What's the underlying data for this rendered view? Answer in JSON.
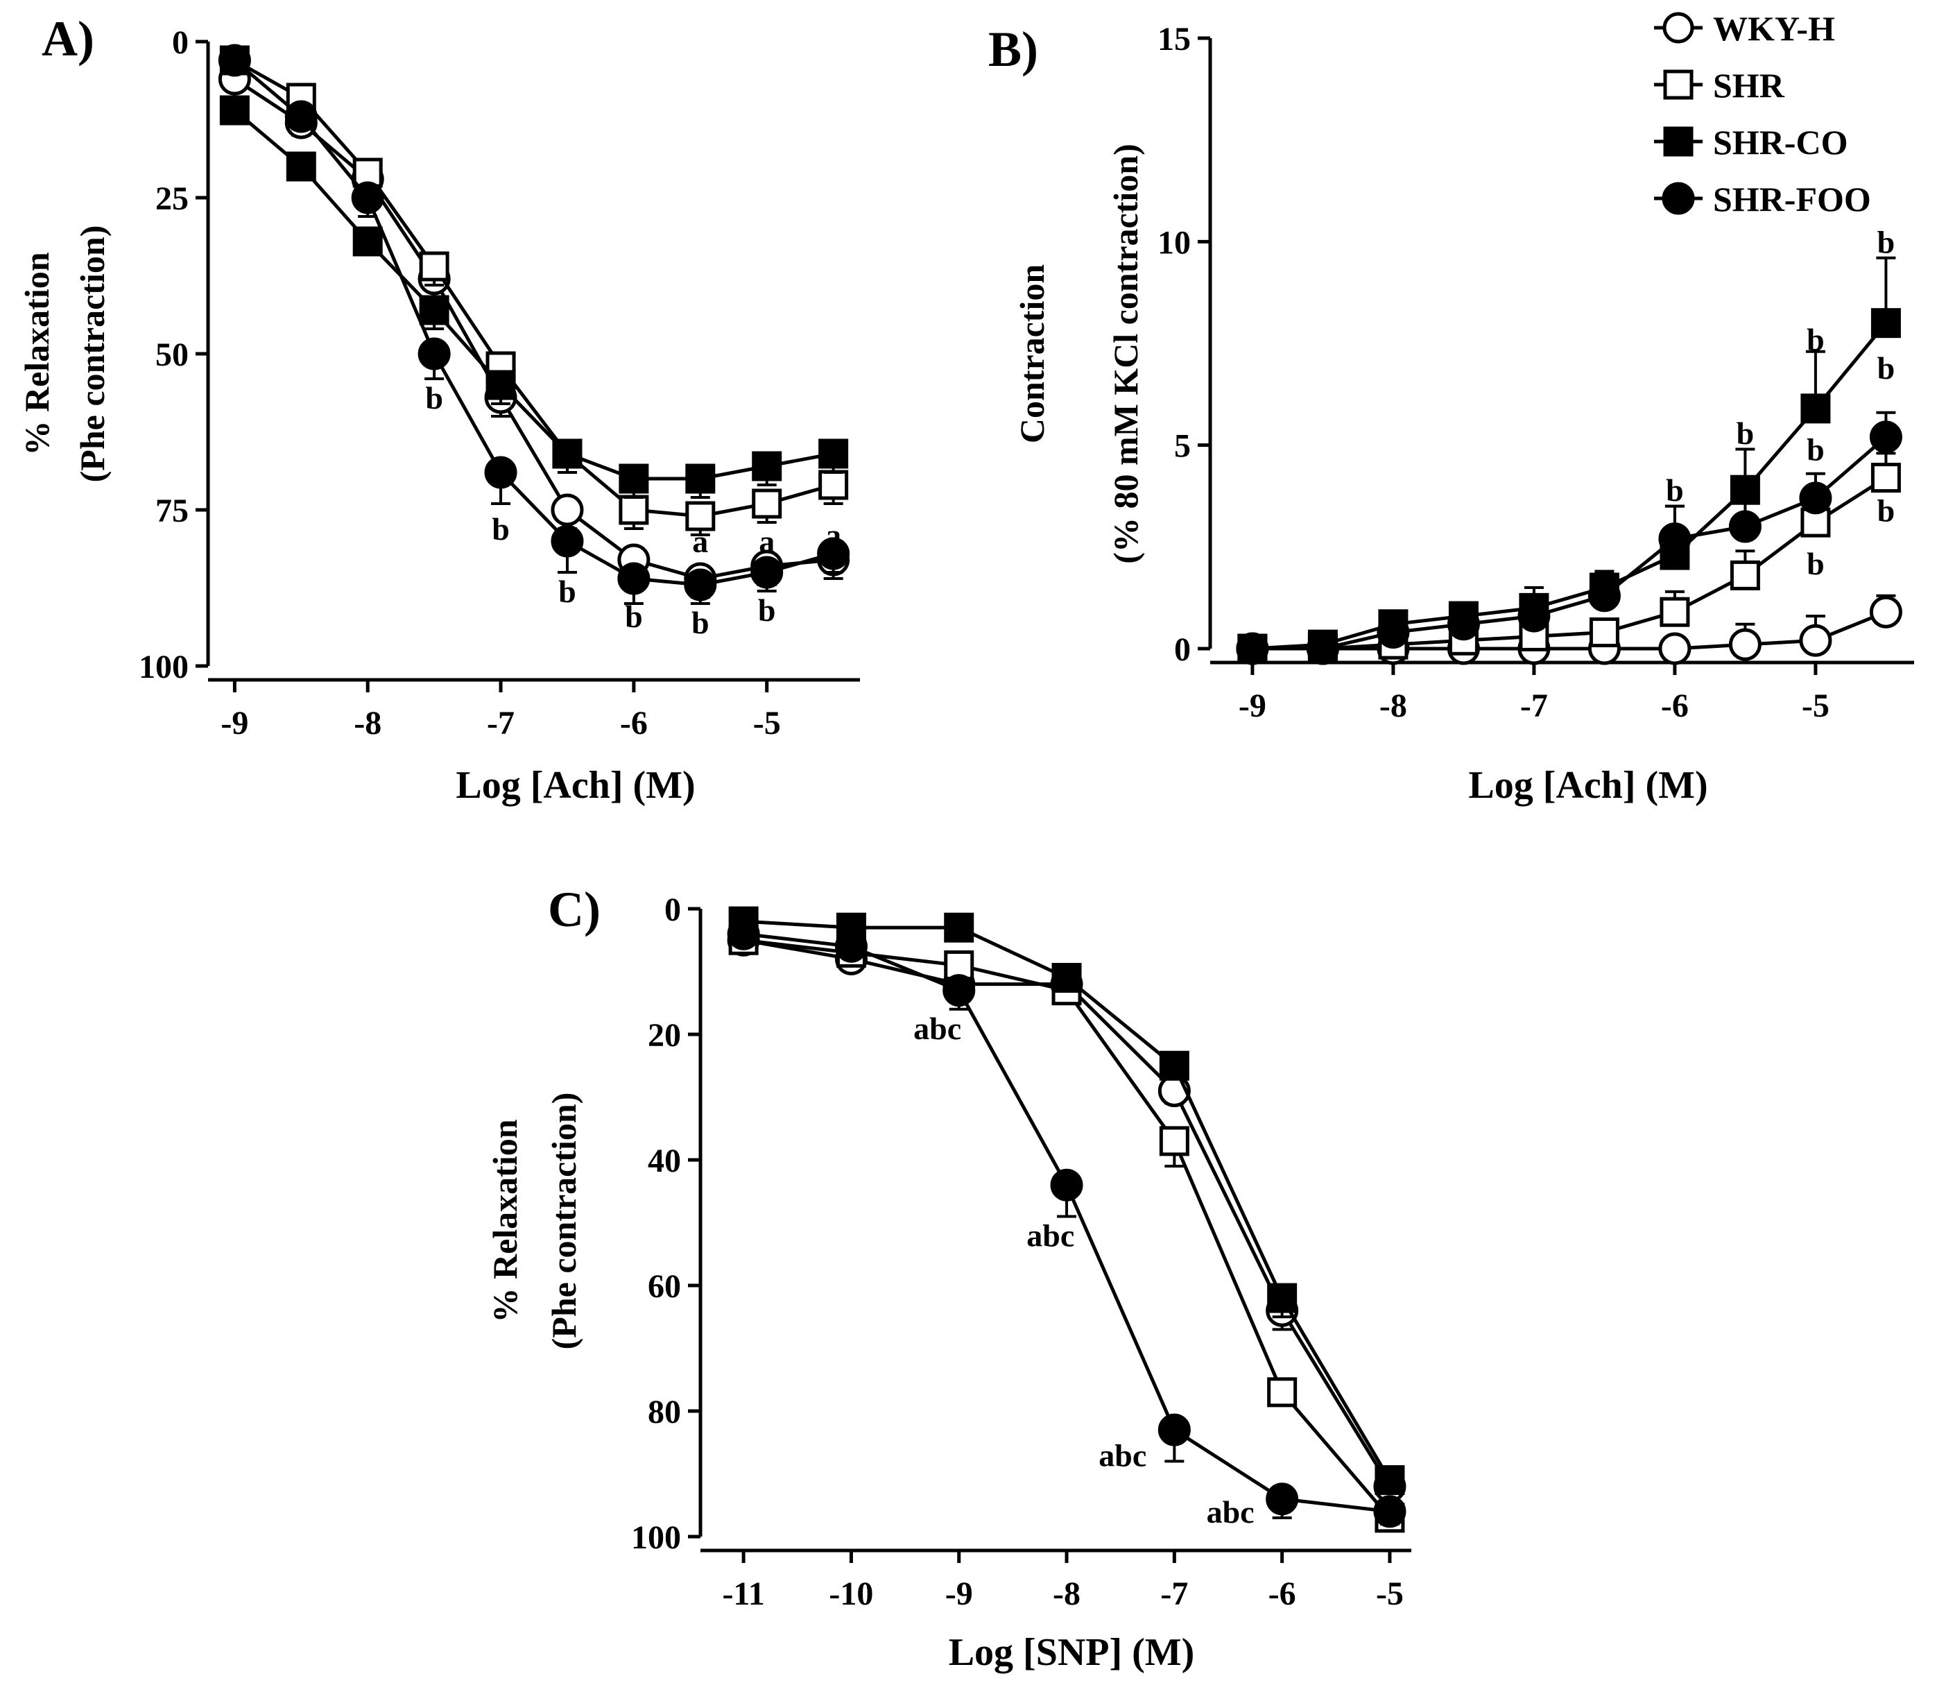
{
  "legend": [
    {
      "label": "WKY-H",
      "marker": "circle-open-icon"
    },
    {
      "label": "SHR",
      "marker": "square-open-icon"
    },
    {
      "label": "SHR-CO",
      "marker": "square-filled-icon"
    },
    {
      "label": "SHR-FOO",
      "marker": "circle-filled-icon"
    }
  ],
  "chart_data": [
    {
      "id": "A",
      "type": "line",
      "panel_label": "A)",
      "xlabel": "Log [Ach] (M)",
      "ylabel_line1": "% Relaxation",
      "ylabel_line2": "(Phe contraction)",
      "xlim": [
        -9.2,
        -4.3
      ],
      "ylim": [
        0,
        100
      ],
      "y_inverted": true,
      "xticks": [
        -9,
        -8,
        -7,
        -6,
        -5
      ],
      "yticks": [
        0,
        25,
        50,
        75,
        100
      ],
      "x": [
        -9,
        -8.5,
        -8,
        -7.5,
        -7,
        -6.5,
        -6,
        -5.5,
        -5,
        -4.5
      ],
      "series": [
        {
          "name": "WKY-H",
          "marker": "circle-open",
          "values": [
            6,
            13,
            22,
            38,
            57,
            75,
            83,
            86,
            84,
            83
          ],
          "errors": [
            1,
            2,
            2,
            3,
            3,
            3,
            3,
            3,
            3,
            3
          ]
        },
        {
          "name": "SHR",
          "marker": "square-open",
          "values": [
            3,
            9,
            21,
            36,
            52,
            66,
            75,
            76,
            74,
            71
          ],
          "errors": [
            1,
            2,
            2,
            3,
            3,
            3,
            3,
            3,
            3,
            3
          ]
        },
        {
          "name": "SHR-CO",
          "marker": "square-filled",
          "values": [
            11,
            20,
            32,
            43,
            55,
            66,
            70,
            70,
            68,
            66
          ],
          "errors": [
            1,
            2,
            2,
            3,
            3,
            3,
            3,
            3,
            3,
            3
          ]
        },
        {
          "name": "SHR-FOO",
          "marker": "circle-filled",
          "values": [
            3,
            12,
            25,
            50,
            69,
            80,
            86,
            87,
            85,
            82
          ],
          "errors": [
            1,
            2,
            3,
            4,
            5,
            5,
            4,
            3,
            3,
            3
          ]
        }
      ],
      "annotations": [
        {
          "x": -7.5,
          "y": 57,
          "text": "b"
        },
        {
          "x": -7.0,
          "y": 78,
          "text": "b"
        },
        {
          "x": -6.5,
          "y": 88,
          "text": "b"
        },
        {
          "x": -6.0,
          "y": 92,
          "text": "b"
        },
        {
          "x": -5.5,
          "y": 80,
          "text": "a"
        },
        {
          "x": -5.5,
          "y": 93,
          "text": "b"
        },
        {
          "x": -5.0,
          "y": 80,
          "text": "a"
        },
        {
          "x": -5.0,
          "y": 91,
          "text": "b"
        },
        {
          "x": -4.5,
          "y": 79,
          "text": "a"
        }
      ]
    },
    {
      "id": "B",
      "type": "line",
      "panel_label": "B)",
      "xlabel": "Log [Ach] (M)",
      "ylabel_line1": "Contraction",
      "ylabel_line2": "(% 80 mM KCl contraction)",
      "xlim": [
        -9.3,
        -4.3
      ],
      "ylim": [
        0,
        15
      ],
      "y_inverted": false,
      "xticks": [
        -9,
        -8,
        -7,
        -6,
        -5
      ],
      "yticks": [
        0,
        5,
        10,
        15
      ],
      "x": [
        -9,
        -8.5,
        -8,
        -7.5,
        -7,
        -6.5,
        -6,
        -5.5,
        -5,
        -4.5
      ],
      "series": [
        {
          "name": "WKY-H",
          "marker": "circle-open",
          "values": [
            0,
            0,
            0,
            0,
            0,
            0,
            0,
            0.1,
            0.2,
            0.9
          ],
          "errors": [
            0.1,
            0.1,
            0.1,
            0.1,
            0.1,
            0.1,
            0.1,
            0.5,
            0.6,
            0.4
          ]
        },
        {
          "name": "SHR",
          "marker": "square-open",
          "values": [
            0,
            0,
            0.1,
            0.2,
            0.3,
            0.4,
            0.9,
            1.8,
            3.1,
            4.2
          ],
          "errors": [
            0.1,
            0.1,
            0.1,
            0.2,
            0.2,
            0.3,
            0.5,
            0.6,
            0.7,
            0.6
          ]
        },
        {
          "name": "SHR-CO",
          "marker": "square-filled",
          "values": [
            0,
            0.1,
            0.6,
            0.8,
            1.0,
            1.5,
            2.3,
            3.9,
            5.9,
            8.0
          ],
          "errors": [
            0.1,
            0.1,
            0.2,
            0.2,
            0.5,
            0.4,
            1.2,
            1.0,
            1.4,
            1.6
          ]
        },
        {
          "name": "SHR-FOO",
          "marker": "circle-filled",
          "values": [
            0,
            0,
            0.4,
            0.6,
            0.8,
            1.3,
            2.7,
            3.0,
            3.7,
            5.2
          ],
          "errors": [
            0.1,
            0.1,
            0.2,
            0.2,
            0.3,
            0.4,
            0.8,
            0.9,
            0.6,
            0.6
          ]
        }
      ],
      "annotations": [
        {
          "x": -6.0,
          "y": 3.9,
          "text": "b"
        },
        {
          "x": -5.5,
          "y": 5.3,
          "text": "b"
        },
        {
          "x": -5.0,
          "y": 7.6,
          "text": "b"
        },
        {
          "x": -5.0,
          "y": 4.9,
          "text": "b"
        },
        {
          "x": -5.0,
          "y": 2.1,
          "text": "b"
        },
        {
          "x": -4.5,
          "y": 10.0,
          "text": "b"
        },
        {
          "x": -4.5,
          "y": 6.9,
          "text": "b"
        },
        {
          "x": -4.5,
          "y": 3.4,
          "text": "b"
        }
      ]
    },
    {
      "id": "C",
      "type": "line",
      "panel_label": "C)",
      "xlabel": "Log [SNP] (M)",
      "ylabel_line1": "% Relaxation",
      "ylabel_line2": "(Phe contraction)",
      "xlim": [
        -11.4,
        -4.8
      ],
      "ylim": [
        0,
        100
      ],
      "y_inverted": true,
      "xticks": [
        -11,
        -10,
        -9,
        -8,
        -7,
        -6,
        -5
      ],
      "yticks": [
        0,
        20,
        40,
        60,
        80,
        100
      ],
      "x": [
        -11,
        -10,
        -9,
        -8,
        -7,
        -6,
        -5
      ],
      "series": [
        {
          "name": "WKY-H",
          "marker": "circle-open",
          "values": [
            5,
            8,
            12,
            12,
            29,
            64,
            92
          ],
          "errors": [
            1,
            1,
            2,
            2,
            2,
            3,
            2
          ]
        },
        {
          "name": "SHR",
          "marker": "square-open",
          "values": [
            5,
            7,
            9,
            13,
            37,
            77,
            97
          ],
          "errors": [
            1,
            1,
            2,
            2,
            4,
            2,
            2
          ]
        },
        {
          "name": "SHR-CO",
          "marker": "square-filled",
          "values": [
            2,
            3,
            3,
            11,
            25,
            62,
            91
          ],
          "errors": [
            1,
            1,
            1,
            2,
            2,
            3,
            2
          ]
        },
        {
          "name": "SHR-FOO",
          "marker": "circle-filled",
          "values": [
            4,
            6,
            13,
            44,
            83,
            94,
            96
          ],
          "errors": [
            1,
            1,
            3,
            5,
            5,
            3,
            2
          ]
        }
      ],
      "annotations": [
        {
          "x": -9.2,
          "y": 19,
          "text": "abc"
        },
        {
          "x": -8.15,
          "y": 52,
          "text": "abc"
        },
        {
          "x": -7.48,
          "y": 87,
          "text": "abc"
        },
        {
          "x": -6.48,
          "y": 96,
          "text": "abc"
        }
      ]
    }
  ]
}
